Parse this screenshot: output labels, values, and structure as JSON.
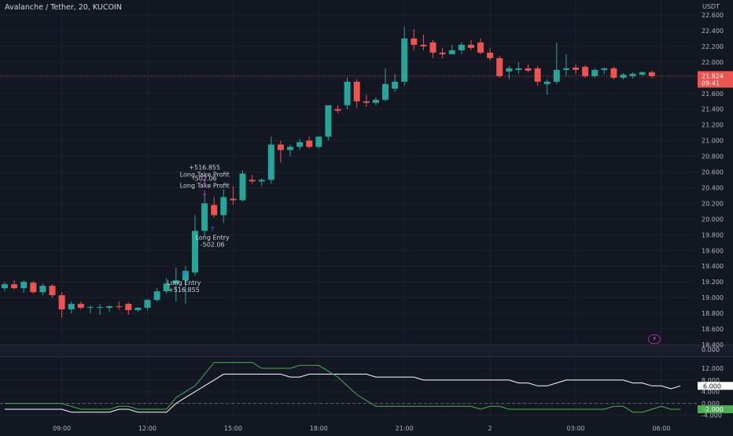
{
  "header": {
    "title": "Avalanche / Tether, 20, KUCOIN",
    "currency": "USDT"
  },
  "chart_data": [
    {
      "type": "candlestick",
      "title": "Avalanche / Tether, 20, KUCOIN",
      "y_unit": "USDT",
      "x_tick_labels": [
        "09:00",
        "12:00",
        "15:00",
        "18:00",
        "21:00",
        "2",
        "03:00",
        "06:00"
      ],
      "y_ticks": [
        18.4,
        18.6,
        18.8,
        19.0,
        19.2,
        19.4,
        19.6,
        19.8,
        20.0,
        20.2,
        20.4,
        20.6,
        20.8,
        21.0,
        21.2,
        21.4,
        21.6,
        21.8,
        22.0,
        22.2,
        22.4,
        22.6
      ],
      "y_tick_labels": [
        "18.400",
        "18.600",
        "18.800",
        "19.000",
        "19.200",
        "19.400",
        "19.600",
        "19.800",
        "20.000",
        "20.200",
        "20.400",
        "20.600",
        "20.800",
        "21.000",
        "21.200",
        "21.400",
        "21.600",
        "21.800",
        "22.000",
        "22.200",
        "22.400",
        "22.600"
      ],
      "ylim": [
        18.4,
        22.65
      ],
      "grid": true,
      "up_color": "#26a69a",
      "down_color": "#ef5350",
      "last_price": {
        "value": "21.824",
        "countdown": "09:41",
        "color": "#ef5350"
      },
      "candles": [
        {
          "time": "07:00",
          "open": 19.12,
          "high": 19.2,
          "low": 19.08,
          "close": 19.17
        },
        {
          "time": "07:20",
          "open": 19.17,
          "high": 19.22,
          "low": 19.1,
          "close": 19.12
        },
        {
          "time": "07:40",
          "open": 19.12,
          "high": 19.22,
          "low": 19.06,
          "close": 19.2
        },
        {
          "time": "08:00",
          "open": 19.19,
          "high": 19.21,
          "low": 19.05,
          "close": 19.07
        },
        {
          "time": "08:20",
          "open": 19.07,
          "high": 19.18,
          "low": 19.03,
          "close": 19.15
        },
        {
          "time": "08:40",
          "open": 19.15,
          "high": 19.17,
          "low": 19.0,
          "close": 19.03
        },
        {
          "time": "09:00",
          "open": 19.03,
          "high": 19.07,
          "low": 18.75,
          "close": 18.85
        },
        {
          "time": "09:20",
          "open": 18.85,
          "high": 18.95,
          "low": 18.8,
          "close": 18.92
        },
        {
          "time": "09:40",
          "open": 18.92,
          "high": 18.95,
          "low": 18.85,
          "close": 18.87
        },
        {
          "time": "10:00",
          "open": 18.87,
          "high": 18.9,
          "low": 18.8,
          "close": 18.88
        },
        {
          "time": "10:20",
          "open": 18.88,
          "high": 18.92,
          "low": 18.78,
          "close": 18.88
        },
        {
          "time": "10:40",
          "open": 18.87,
          "high": 18.9,
          "low": 18.82,
          "close": 18.89
        },
        {
          "time": "11:00",
          "open": 18.89,
          "high": 18.95,
          "low": 18.85,
          "close": 18.88
        },
        {
          "time": "11:20",
          "open": 18.92,
          "high": 18.94,
          "low": 18.78,
          "close": 18.84
        },
        {
          "time": "11:40",
          "open": 18.84,
          "high": 18.88,
          "low": 18.82,
          "close": 18.87
        },
        {
          "time": "12:00",
          "open": 18.87,
          "high": 18.98,
          "low": 18.84,
          "close": 18.97
        },
        {
          "time": "12:20",
          "open": 18.97,
          "high": 19.12,
          "low": 18.95,
          "close": 19.08
        },
        {
          "time": "12:40",
          "open": 19.08,
          "high": 19.25,
          "low": 19.05,
          "close": 19.18
        },
        {
          "time": "13:00",
          "open": 19.18,
          "high": 19.38,
          "low": 18.95,
          "close": 19.22
        },
        {
          "time": "13:20",
          "open": 19.22,
          "high": 19.4,
          "low": 18.92,
          "close": 19.34
        },
        {
          "time": "13:40",
          "open": 19.32,
          "high": 20.05,
          "low": 19.28,
          "close": 19.85
        },
        {
          "time": "14:00",
          "open": 19.85,
          "high": 20.3,
          "low": 19.78,
          "close": 20.2
        },
        {
          "time": "14:20",
          "open": 20.18,
          "high": 20.28,
          "low": 20.02,
          "close": 20.05
        },
        {
          "time": "14:40",
          "open": 20.05,
          "high": 20.38,
          "low": 19.95,
          "close": 20.28
        },
        {
          "time": "15:00",
          "open": 20.26,
          "high": 20.42,
          "low": 20.18,
          "close": 20.24
        },
        {
          "time": "15:20",
          "open": 20.24,
          "high": 20.62,
          "low": 20.22,
          "close": 20.58
        },
        {
          "time": "15:40",
          "open": 20.5,
          "high": 20.56,
          "low": 20.45,
          "close": 20.48
        },
        {
          "time": "16:00",
          "open": 20.48,
          "high": 20.52,
          "low": 20.42,
          "close": 20.5
        },
        {
          "time": "16:20",
          "open": 20.5,
          "high": 21.05,
          "low": 20.45,
          "close": 20.95
        },
        {
          "time": "16:40",
          "open": 20.95,
          "high": 21.0,
          "low": 20.72,
          "close": 20.88
        },
        {
          "time": "17:00",
          "open": 20.88,
          "high": 20.95,
          "low": 20.8,
          "close": 20.92
        },
        {
          "time": "17:20",
          "open": 20.92,
          "high": 21.02,
          "low": 20.88,
          "close": 20.98
        },
        {
          "time": "17:40",
          "open": 21.0,
          "high": 21.05,
          "low": 20.9,
          "close": 20.92
        },
        {
          "time": "18:00",
          "open": 20.92,
          "high": 21.05,
          "low": 20.9,
          "close": 21.05
        },
        {
          "time": "18:20",
          "open": 21.05,
          "high": 21.45,
          "low": 21.0,
          "close": 21.45
        },
        {
          "time": "18:40",
          "open": 21.4,
          "high": 21.45,
          "low": 21.35,
          "close": 21.38
        },
        {
          "time": "19:00",
          "open": 21.45,
          "high": 21.8,
          "low": 21.4,
          "close": 21.75
        },
        {
          "time": "19:20",
          "open": 21.75,
          "high": 21.78,
          "low": 21.42,
          "close": 21.5
        },
        {
          "time": "19:40",
          "open": 21.5,
          "high": 21.58,
          "low": 21.43,
          "close": 21.48
        },
        {
          "time": "20:00",
          "open": 21.48,
          "high": 21.55,
          "low": 21.45,
          "close": 21.52
        },
        {
          "time": "20:20",
          "open": 21.52,
          "high": 21.92,
          "low": 21.5,
          "close": 21.72
        },
        {
          "time": "20:40",
          "open": 21.66,
          "high": 21.85,
          "low": 21.62,
          "close": 21.75
        },
        {
          "time": "21:00",
          "open": 21.75,
          "high": 22.45,
          "low": 21.7,
          "close": 22.3
        },
        {
          "time": "21:20",
          "open": 22.3,
          "high": 22.42,
          "low": 22.15,
          "close": 22.22
        },
        {
          "time": "21:40",
          "open": 22.22,
          "high": 22.35,
          "low": 22.15,
          "close": 22.2
        },
        {
          "time": "22:00",
          "open": 22.25,
          "high": 22.28,
          "low": 22.05,
          "close": 22.12
        },
        {
          "time": "22:20",
          "open": 22.12,
          "high": 22.18,
          "low": 22.05,
          "close": 22.1
        },
        {
          "time": "22:40",
          "open": 22.1,
          "high": 22.22,
          "low": 22.1,
          "close": 22.15
        },
        {
          "time": "23:00",
          "open": 22.15,
          "high": 22.25,
          "low": 22.1,
          "close": 22.22
        },
        {
          "time": "23:20",
          "open": 22.22,
          "high": 22.28,
          "low": 22.15,
          "close": 22.18
        },
        {
          "time": "23:40",
          "open": 22.25,
          "high": 22.3,
          "low": 22.1,
          "close": 22.12
        },
        {
          "time": "00:00",
          "open": 22.12,
          "high": 22.18,
          "low": 22.02,
          "close": 22.05
        },
        {
          "time": "00:20",
          "open": 22.05,
          "high": 22.08,
          "low": 21.8,
          "close": 21.82
        },
        {
          "time": "00:40",
          "open": 21.88,
          "high": 21.95,
          "low": 21.78,
          "close": 21.92
        },
        {
          "time": "01:00",
          "open": 21.9,
          "high": 22.0,
          "low": 21.85,
          "close": 21.92
        },
        {
          "time": "01:20",
          "open": 21.92,
          "high": 21.97,
          "low": 21.87,
          "close": 21.89
        },
        {
          "time": "01:40",
          "open": 21.92,
          "high": 21.95,
          "low": 21.7,
          "close": 21.75
        },
        {
          "time": "02:00",
          "open": 21.72,
          "high": 21.78,
          "low": 21.58,
          "close": 21.75
        },
        {
          "time": "02:20",
          "open": 21.75,
          "high": 22.25,
          "low": 21.72,
          "close": 21.9
        },
        {
          "time": "02:40",
          "open": 21.9,
          "high": 22.1,
          "low": 21.82,
          "close": 21.92
        },
        {
          "time": "03:00",
          "open": 21.93,
          "high": 21.97,
          "low": 21.85,
          "close": 21.9
        },
        {
          "time": "03:20",
          "open": 21.94,
          "high": 21.96,
          "low": 21.8,
          "close": 21.82
        },
        {
          "time": "03:40",
          "open": 21.82,
          "high": 21.92,
          "low": 21.8,
          "close": 21.9
        },
        {
          "time": "04:00",
          "open": 21.9,
          "high": 21.93,
          "low": 21.85,
          "close": 21.92
        },
        {
          "time": "04:20",
          "open": 21.92,
          "high": 21.94,
          "low": 21.78,
          "close": 21.8
        },
        {
          "time": "04:40",
          "open": 21.8,
          "high": 21.86,
          "low": 21.78,
          "close": 21.84
        },
        {
          "time": "05:00",
          "open": 21.82,
          "high": 21.87,
          "low": 21.79,
          "close": 21.85
        },
        {
          "time": "05:20",
          "open": 21.84,
          "high": 21.88,
          "low": 21.82,
          "close": 21.87
        },
        {
          "time": "05:40",
          "open": 21.87,
          "high": 21.89,
          "low": 21.8,
          "close": 21.82
        }
      ],
      "annotations": [
        {
          "type": "label",
          "text": "Long Entry",
          "value": "+516.855",
          "at": "13:20",
          "price": 19.3,
          "color": "#2962ff"
        },
        {
          "type": "label",
          "text": "Long Entry",
          "value": "-502.06",
          "at": "14:20",
          "price": 19.88,
          "color": "#2962ff"
        },
        {
          "type": "label",
          "text": "Long Take Profit",
          "value": "-502.06",
          "at": "14:20",
          "price": 20.34,
          "color": "#e040fb"
        },
        {
          "type": "label",
          "text": "Long Take Profit",
          "value": "+516.855",
          "at": "14:20",
          "price": 20.48,
          "color": "#e040fb"
        }
      ]
    },
    {
      "type": "line",
      "y_ticks": [
        -4,
        0,
        4,
        8,
        12
      ],
      "y_tick_labels": [
        "-4.000",
        "0.000",
        "4.000",
        "8.000",
        "12.000"
      ],
      "ylim": [
        -5.5,
        15.5
      ],
      "zero_line": true,
      "series": [
        {
          "color": "#ffffff",
          "last_label": "6.000",
          "values": [
            -2,
            -2,
            -2,
            -2,
            -2,
            -2,
            -2,
            -3,
            -3,
            -3,
            -3,
            -3,
            -2,
            -2,
            -3,
            -3,
            -3,
            -3,
            0,
            2,
            4,
            6,
            8,
            10,
            10,
            10,
            10,
            10,
            10,
            10,
            9,
            9,
            10,
            10,
            10,
            10,
            10,
            10,
            10,
            9,
            9,
            9,
            9,
            9,
            8,
            8,
            8,
            8,
            8,
            8,
            8,
            8,
            8,
            8,
            7,
            7,
            6,
            6,
            7,
            8,
            8,
            8,
            8,
            8,
            8,
            8,
            7,
            7,
            6,
            6,
            5,
            6
          ]
        },
        {
          "color": "#4caf50",
          "last_label": "-2.000",
          "values": [
            0,
            0,
            0,
            0,
            0,
            0,
            0,
            -1,
            -2,
            -2,
            -2,
            -2,
            -1,
            -1,
            -2,
            -2,
            -2,
            -2,
            2,
            4,
            6,
            10,
            14,
            14,
            14,
            14,
            14,
            12,
            12,
            12,
            12,
            13,
            13,
            13,
            11,
            9,
            6,
            3,
            1,
            -1,
            -1,
            -1,
            -1,
            -1,
            -1,
            -1,
            -1,
            -1,
            -1,
            -1,
            -2,
            -1,
            -1,
            -2,
            -2,
            -2,
            -2,
            -2,
            -2,
            -2,
            -2,
            -2,
            -2,
            -2,
            -1,
            -1,
            -3,
            -3,
            -2,
            -1,
            -2,
            -2
          ]
        }
      ]
    }
  ]
}
